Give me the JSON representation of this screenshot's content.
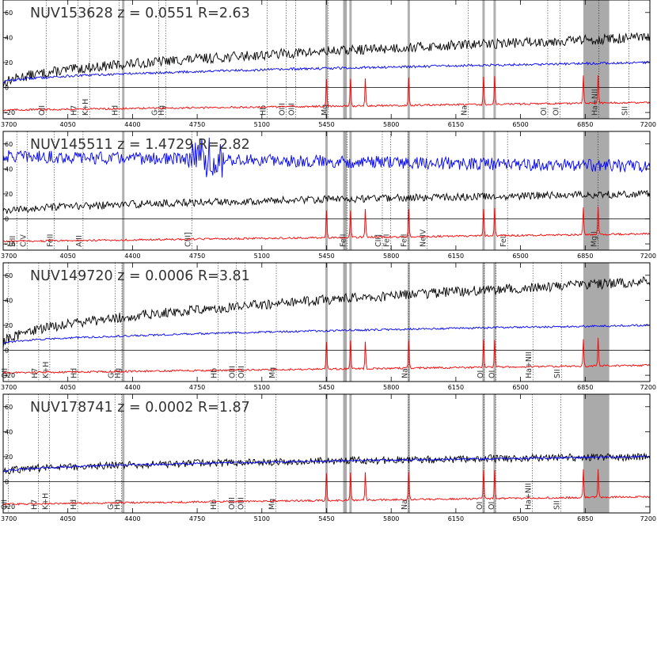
{
  "chart_data": [
    {
      "type": "line",
      "title": "NUV153628  z = 0.0551  R=2.63",
      "xlim": [
        3700,
        7200
      ],
      "ylim": [
        -25,
        70
      ],
      "xticks": [
        3700,
        4050,
        4400,
        4750,
        5100,
        5450,
        5800,
        6150,
        6500,
        6850,
        7200
      ],
      "yticks": [
        -20,
        0,
        20,
        40,
        60
      ],
      "shaded_bands": [
        [
          5540,
          5560
        ],
        [
          6840,
          6980
        ]
      ],
      "gray_lines": [
        4350,
        5450,
        5580,
        5895,
        6300,
        6360
      ],
      "lines": [
        {
          "label": "OII",
          "x": 3727
        },
        {
          "label": "H7",
          "x": 3890
        },
        {
          "label": "K+H",
          "x": 3950
        },
        {
          "label": "Hd",
          "x": 4102
        },
        {
          "label": "G",
          "x": 4304
        },
        {
          "label": "Hg",
          "x": 4340
        },
        {
          "label": "Hb",
          "x": 4861
        },
        {
          "label": "OIII",
          "x": 4959
        },
        {
          "label": "OIII",
          "x": 5007
        },
        {
          "label": "Mg",
          "x": 5175
        },
        {
          "label": "Na",
          "x": 5893
        },
        {
          "label": "OI",
          "x": 6300
        },
        {
          "label": "OI",
          "x": 6364
        },
        {
          "label": "Ha+NII",
          "x": 6563
        },
        {
          "label": "SII",
          "x": 6717
        }
      ],
      "series": [
        {
          "name": "",
          "color": "#000000",
          "start": 2,
          "end": 40,
          "noise": 4,
          "shape": "rising"
        },
        {
          "name": "",
          "color": "#0000ff",
          "start": 4,
          "end": 20,
          "noise": 1,
          "shape": "rising"
        },
        {
          "name": "",
          "color": "#ff0000",
          "start": -18,
          "end": -12,
          "noise": 1.5,
          "shape": "template"
        }
      ]
    },
    {
      "type": "line",
      "title": "NUV145511  z = 1.4729  R=2.82",
      "xlim": [
        3700,
        7200
      ],
      "ylim": [
        -25,
        70
      ],
      "xticks": [
        3700,
        4050,
        4400,
        4750,
        5100,
        5450,
        5800,
        6150,
        6500,
        6850,
        7200
      ],
      "yticks": [
        -20,
        0,
        20,
        40,
        60
      ],
      "shaded_bands": [
        [
          5540,
          5560
        ],
        [
          6840,
          6980
        ]
      ],
      "gray_lines": [
        4350,
        5450,
        5580,
        5895,
        6300,
        6360
      ],
      "lines": [
        {
          "label": "SiII",
          "x": 1526
        },
        {
          "label": "CIV",
          "x": 1549
        },
        {
          "label": "FeII",
          "x": 1608
        },
        {
          "label": "AlII",
          "x": 1671
        },
        {
          "label": "CIII]",
          "x": 1909
        },
        {
          "label": "FeII",
          "x": 2249
        },
        {
          "label": "CII]",
          "x": 2326
        },
        {
          "label": "FeII",
          "x": 2344
        },
        {
          "label": "FeII",
          "x": 2382
        },
        {
          "label": "NeIV",
          "x": 2424
        },
        {
          "label": "FeII",
          "x": 2600
        },
        {
          "label": "MgII",
          "x": 2798
        }
      ],
      "series": [
        {
          "name": "",
          "color": "#0000ff",
          "start": 50,
          "end": 42,
          "noise": 5,
          "shape": "flat"
        },
        {
          "name": "",
          "color": "#000000",
          "start": 5,
          "end": 20,
          "noise": 3,
          "shape": "rising"
        },
        {
          "name": "",
          "color": "#ff0000",
          "start": -18,
          "end": -12,
          "noise": 1.5,
          "shape": "template"
        }
      ]
    },
    {
      "type": "line",
      "title": "NUV149720  z = 0.0006  R=3.81",
      "xlim": [
        3700,
        7200
      ],
      "ylim": [
        -25,
        70
      ],
      "xticks": [
        3700,
        4050,
        4400,
        4750,
        5100,
        5450,
        5800,
        6150,
        6500,
        6850,
        7200
      ],
      "yticks": [
        -20,
        0,
        20,
        40,
        60
      ],
      "shaded_bands": [
        [
          5540,
          5560
        ],
        [
          6840,
          6980
        ]
      ],
      "gray_lines": [
        4350,
        5450,
        5580,
        5895,
        6300,
        6360
      ],
      "lines": [
        {
          "label": "OII",
          "x": 3727
        },
        {
          "label": "H7",
          "x": 3890
        },
        {
          "label": "K+H",
          "x": 3950
        },
        {
          "label": "Hd",
          "x": 4102
        },
        {
          "label": "G",
          "x": 4304
        },
        {
          "label": "Hg",
          "x": 4340
        },
        {
          "label": "Hb",
          "x": 4861
        },
        {
          "label": "OIII",
          "x": 4959
        },
        {
          "label": "OIII",
          "x": 5007
        },
        {
          "label": "Mg",
          "x": 5175
        },
        {
          "label": "Na",
          "x": 5893
        },
        {
          "label": "OI",
          "x": 6300
        },
        {
          "label": "OI",
          "x": 6364
        },
        {
          "label": "Ha+NII",
          "x": 6563
        },
        {
          "label": "SII",
          "x": 6717
        }
      ],
      "series": [
        {
          "name": "",
          "color": "#000000",
          "start": 5,
          "end": 55,
          "noise": 4,
          "shape": "rising"
        },
        {
          "name": "",
          "color": "#0000ff",
          "start": 5,
          "end": 20,
          "noise": 0.8,
          "shape": "rising"
        },
        {
          "name": "",
          "color": "#ff0000",
          "start": -18,
          "end": -12,
          "noise": 1.5,
          "shape": "template"
        }
      ]
    },
    {
      "type": "line",
      "title": "NUV178741  z = 0.0002  R=1.87",
      "xlim": [
        3700,
        7200
      ],
      "ylim": [
        -25,
        70
      ],
      "xticks": [
        3700,
        4050,
        4400,
        4750,
        5100,
        5450,
        5800,
        6150,
        6500,
        6850,
        7200
      ],
      "yticks": [
        -20,
        0,
        20,
        40,
        60
      ],
      "shaded_bands": [
        [
          5540,
          5560
        ],
        [
          6840,
          6980
        ]
      ],
      "gray_lines": [
        4350,
        5450,
        5580,
        5895,
        6300,
        6360
      ],
      "lines": [
        {
          "label": "OII",
          "x": 3727
        },
        {
          "label": "H7",
          "x": 3890
        },
        {
          "label": "K+H",
          "x": 3950
        },
        {
          "label": "Hd",
          "x": 4102
        },
        {
          "label": "G",
          "x": 4304
        },
        {
          "label": "Hg",
          "x": 4340
        },
        {
          "label": "Hb",
          "x": 4861
        },
        {
          "label": "OIII",
          "x": 4959
        },
        {
          "label": "OIII",
          "x": 5007
        },
        {
          "label": "Mg",
          "x": 5175
        },
        {
          "label": "Na",
          "x": 5893
        },
        {
          "label": "OI",
          "x": 6300
        },
        {
          "label": "OI",
          "x": 6364
        },
        {
          "label": "Ha+NII",
          "x": 6563
        },
        {
          "label": "SII",
          "x": 6717
        }
      ],
      "series": [
        {
          "name": "",
          "color": "#000000",
          "start": 8,
          "end": 20,
          "noise": 3,
          "shape": "rising"
        },
        {
          "name": "",
          "color": "#0000ff",
          "start": 8,
          "end": 20,
          "noise": 0.8,
          "shape": "rising"
        },
        {
          "name": "",
          "color": "#ff0000",
          "start": -18,
          "end": -12,
          "noise": 1.5,
          "shape": "template"
        }
      ]
    }
  ]
}
